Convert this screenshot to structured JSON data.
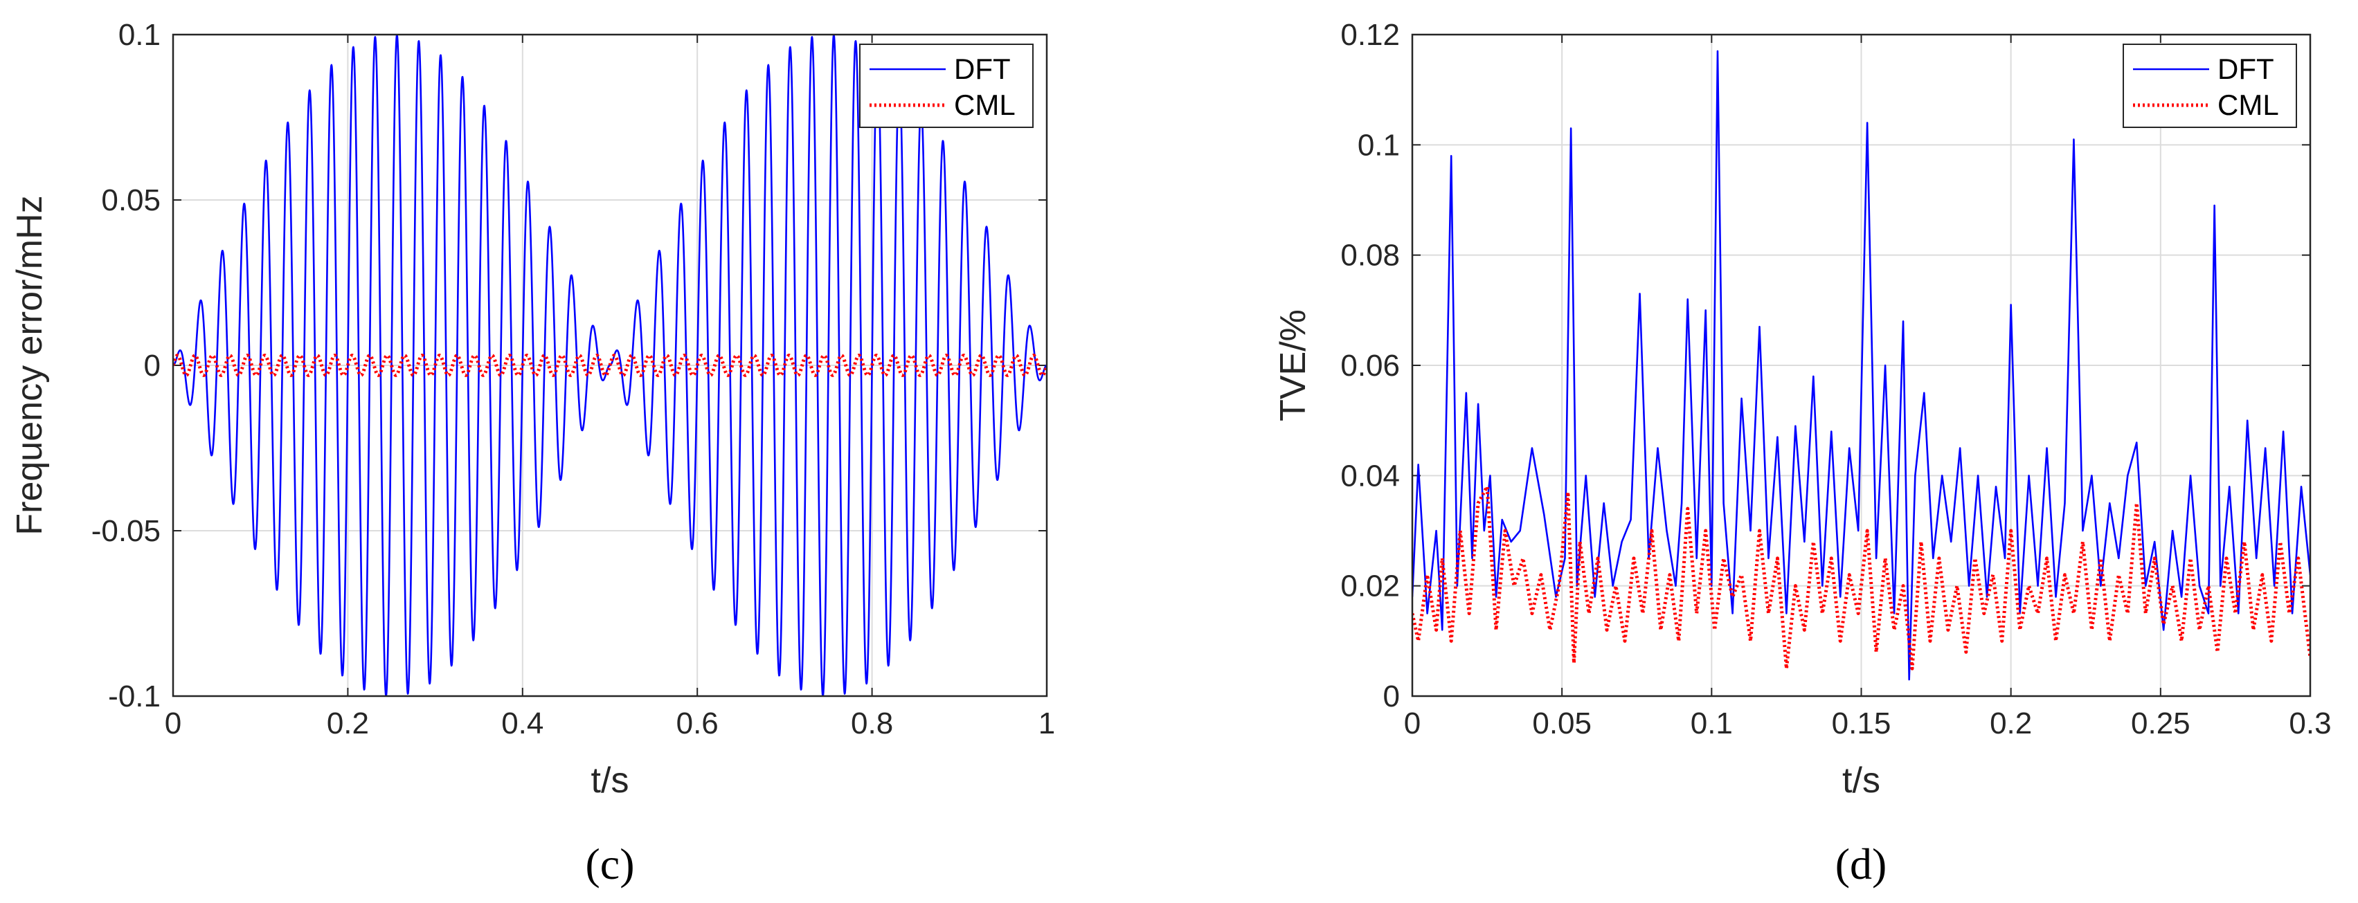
{
  "chart_data": [
    {
      "type": "line",
      "panel_label": "(c)",
      "xlabel": "t/s",
      "ylabel": "Frequency error/mHz",
      "xlim": [
        0,
        1
      ],
      "ylim": [
        -0.1,
        0.1
      ],
      "xticks": [
        "0",
        "0.2",
        "0.4",
        "0.6",
        "0.8",
        "1"
      ],
      "yticks": [
        "-0.1",
        "-0.05",
        "0",
        "0.05",
        "0.1"
      ],
      "grid": true,
      "legend_position": "top-right",
      "series": [
        {
          "name": "DFT",
          "color": "#0000ff",
          "style": "solid",
          "envelope": "0.1·|sin(2πt)|",
          "oscillation_frequency_hz": 40,
          "x": [
            0,
            0.05,
            0.1,
            0.15,
            0.2,
            0.25,
            0.3,
            0.35,
            0.4,
            0.45,
            0.5,
            0.55,
            0.6,
            0.65,
            0.7,
            0.75,
            0.8,
            0.85,
            0.9,
            0.95,
            1
          ],
          "peak_amplitude": [
            0,
            0.031,
            0.059,
            0.081,
            0.095,
            0.1,
            0.095,
            0.081,
            0.059,
            0.031,
            0,
            0.031,
            0.059,
            0.081,
            0.095,
            0.1,
            0.095,
            0.081,
            0.059,
            0.031,
            0
          ]
        },
        {
          "name": "CML",
          "color": "#ff0000",
          "style": "dotted",
          "amplitude": 0.003,
          "oscillation_frequency_hz": 50
        }
      ]
    },
    {
      "type": "line",
      "panel_label": "(d)",
      "xlabel": "t/s",
      "ylabel": "TVE/%",
      "xlim": [
        0,
        0.3
      ],
      "ylim": [
        0,
        0.12
      ],
      "xticks": [
        "0",
        "0.05",
        "0.1",
        "0.15",
        "0.2",
        "0.25",
        "0.3"
      ],
      "yticks": [
        "0",
        "0.02",
        "0.04",
        "0.06",
        "0.08",
        "0.1",
        "0.12"
      ],
      "grid": true,
      "legend_position": "top-right",
      "series": [
        {
          "name": "DFT",
          "color": "#0000ff",
          "style": "solid",
          "x": [
            0,
            0.002,
            0.005,
            0.008,
            0.01,
            0.013,
            0.015,
            0.018,
            0.02,
            0.022,
            0.024,
            0.026,
            0.028,
            0.03,
            0.033,
            0.036,
            0.04,
            0.044,
            0.048,
            0.051,
            0.053,
            0.055,
            0.058,
            0.061,
            0.064,
            0.067,
            0.07,
            0.073,
            0.076,
            0.079,
            0.082,
            0.085,
            0.088,
            0.09,
            0.092,
            0.095,
            0.098,
            0.1,
            0.102,
            0.104,
            0.107,
            0.11,
            0.113,
            0.116,
            0.119,
            0.122,
            0.125,
            0.128,
            0.131,
            0.134,
            0.137,
            0.14,
            0.143,
            0.146,
            0.149,
            0.152,
            0.155,
            0.158,
            0.161,
            0.164,
            0.166,
            0.168,
            0.171,
            0.174,
            0.177,
            0.18,
            0.183,
            0.186,
            0.189,
            0.192,
            0.195,
            0.198,
            0.2,
            0.203,
            0.206,
            0.209,
            0.212,
            0.215,
            0.218,
            0.221,
            0.224,
            0.227,
            0.23,
            0.233,
            0.236,
            0.239,
            0.242,
            0.245,
            0.248,
            0.251,
            0.254,
            0.257,
            0.26,
            0.263,
            0.266,
            0.268,
            0.27,
            0.273,
            0.276,
            0.279,
            0.282,
            0.285,
            0.288,
            0.291,
            0.294,
            0.297,
            0.3
          ],
          "y": [
            0.018,
            0.042,
            0.015,
            0.03,
            0.012,
            0.098,
            0.02,
            0.055,
            0.025,
            0.053,
            0.03,
            0.04,
            0.018,
            0.032,
            0.028,
            0.03,
            0.045,
            0.033,
            0.018,
            0.025,
            0.103,
            0.02,
            0.04,
            0.018,
            0.035,
            0.02,
            0.028,
            0.032,
            0.073,
            0.025,
            0.045,
            0.03,
            0.02,
            0.035,
            0.072,
            0.025,
            0.07,
            0.02,
            0.117,
            0.035,
            0.015,
            0.054,
            0.03,
            0.067,
            0.025,
            0.047,
            0.015,
            0.049,
            0.028,
            0.058,
            0.02,
            0.048,
            0.018,
            0.045,
            0.03,
            0.104,
            0.025,
            0.06,
            0.015,
            0.068,
            0.003,
            0.04,
            0.055,
            0.025,
            0.04,
            0.028,
            0.045,
            0.02,
            0.04,
            0.018,
            0.038,
            0.025,
            0.071,
            0.015,
            0.04,
            0.02,
            0.045,
            0.018,
            0.035,
            0.101,
            0.03,
            0.04,
            0.02,
            0.035,
            0.025,
            0.04,
            0.046,
            0.02,
            0.028,
            0.012,
            0.03,
            0.018,
            0.04,
            0.02,
            0.015,
            0.089,
            0.02,
            0.038,
            0.015,
            0.05,
            0.025,
            0.045,
            0.02,
            0.048,
            0.015,
            0.038,
            0.022
          ]
        },
        {
          "name": "CML",
          "color": "#ff0000",
          "style": "dotted",
          "x": [
            0,
            0.002,
            0.005,
            0.008,
            0.01,
            0.013,
            0.016,
            0.019,
            0.022,
            0.025,
            0.028,
            0.031,
            0.034,
            0.037,
            0.04,
            0.043,
            0.046,
            0.049,
            0.052,
            0.054,
            0.056,
            0.059,
            0.062,
            0.065,
            0.068,
            0.071,
            0.074,
            0.077,
            0.08,
            0.083,
            0.086,
            0.089,
            0.092,
            0.095,
            0.098,
            0.101,
            0.104,
            0.107,
            0.11,
            0.113,
            0.116,
            0.119,
            0.122,
            0.125,
            0.128,
            0.131,
            0.134,
            0.137,
            0.14,
            0.143,
            0.146,
            0.149,
            0.152,
            0.155,
            0.158,
            0.161,
            0.164,
            0.167,
            0.17,
            0.173,
            0.176,
            0.179,
            0.182,
            0.185,
            0.188,
            0.191,
            0.194,
            0.197,
            0.2,
            0.203,
            0.206,
            0.209,
            0.212,
            0.215,
            0.218,
            0.221,
            0.224,
            0.227,
            0.23,
            0.233,
            0.236,
            0.239,
            0.242,
            0.245,
            0.248,
            0.251,
            0.254,
            0.257,
            0.26,
            0.263,
            0.266,
            0.269,
            0.272,
            0.275,
            0.278,
            0.281,
            0.284,
            0.287,
            0.29,
            0.293,
            0.296,
            0.3
          ],
          "y": [
            0.015,
            0.01,
            0.022,
            0.012,
            0.025,
            0.01,
            0.03,
            0.015,
            0.035,
            0.038,
            0.012,
            0.03,
            0.02,
            0.025,
            0.015,
            0.022,
            0.012,
            0.02,
            0.037,
            0.006,
            0.028,
            0.015,
            0.025,
            0.012,
            0.02,
            0.01,
            0.025,
            0.015,
            0.03,
            0.012,
            0.022,
            0.01,
            0.034,
            0.015,
            0.03,
            0.012,
            0.025,
            0.018,
            0.022,
            0.01,
            0.03,
            0.015,
            0.025,
            0.005,
            0.02,
            0.012,
            0.028,
            0.015,
            0.025,
            0.01,
            0.022,
            0.015,
            0.03,
            0.008,
            0.025,
            0.012,
            0.02,
            0.005,
            0.028,
            0.01,
            0.025,
            0.012,
            0.02,
            0.008,
            0.025,
            0.015,
            0.022,
            0.01,
            0.03,
            0.012,
            0.02,
            0.015,
            0.025,
            0.01,
            0.022,
            0.015,
            0.028,
            0.012,
            0.025,
            0.01,
            0.022,
            0.015,
            0.035,
            0.015,
            0.025,
            0.013,
            0.02,
            0.01,
            0.025,
            0.012,
            0.02,
            0.008,
            0.025,
            0.015,
            0.028,
            0.012,
            0.022,
            0.01,
            0.028,
            0.015,
            0.025,
            0.007
          ]
        }
      ]
    }
  ]
}
